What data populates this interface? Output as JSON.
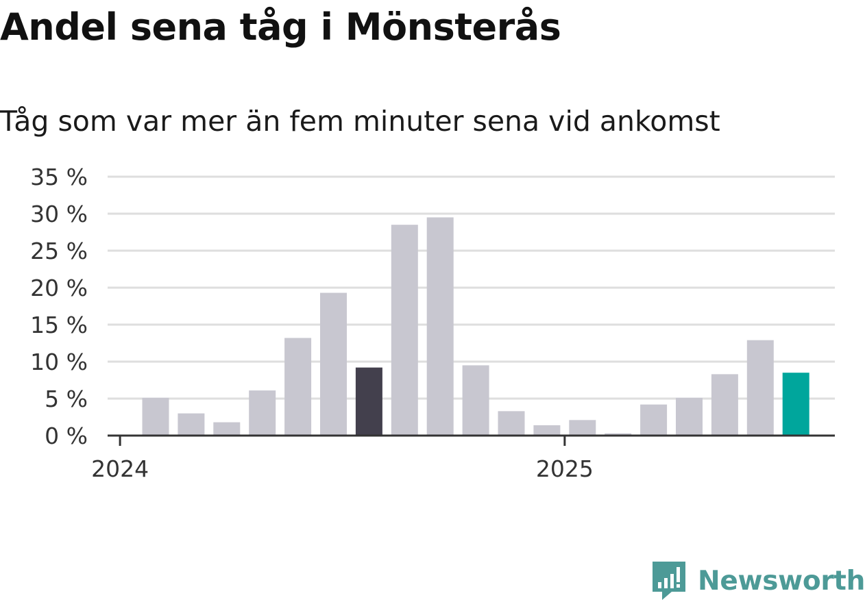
{
  "header": {
    "title": "Andel sena tåg i Mönsterås",
    "subtitle": "Tåg som var mer än fem minuter sena vid ankomst"
  },
  "brand": {
    "name": "Newsworthy",
    "color": "#4d9a97"
  },
  "colors": {
    "bar": "#c8c7d0",
    "highlight_dark": "#43404d",
    "highlight_accent": "#00a69c",
    "grid": "#dedede",
    "axis": "#333333"
  },
  "chart_data": {
    "type": "bar",
    "categories": [
      "2024-01",
      "2024-02",
      "2024-03",
      "2024-04",
      "2024-05",
      "2024-06",
      "2024-07",
      "2024-08",
      "2024-09",
      "2024-10",
      "2024-11",
      "2024-12",
      "2025-01",
      "2025-02",
      "2025-03",
      "2025-04",
      "2025-05",
      "2025-06",
      "2025-07"
    ],
    "values": [
      5.1,
      3.0,
      1.8,
      6.1,
      13.2,
      19.3,
      9.2,
      28.5,
      29.5,
      9.5,
      3.3,
      1.4,
      2.1,
      0.3,
      4.2,
      5.1,
      8.3,
      12.9,
      8.5
    ],
    "highlight": {
      "2024-07": "dark",
      "2025-07": "accent"
    },
    "ylim": [
      0,
      35
    ],
    "yticks": [
      0,
      5,
      10,
      15,
      20,
      25,
      30,
      35
    ],
    "ytick_labels": [
      "0 %",
      "5 %",
      "10 %",
      "15 %",
      "20 %",
      "25 %",
      "30 %",
      "35 %"
    ],
    "xtick_labels": [
      "2024",
      "2025"
    ],
    "grid": true,
    "legend": "none"
  }
}
